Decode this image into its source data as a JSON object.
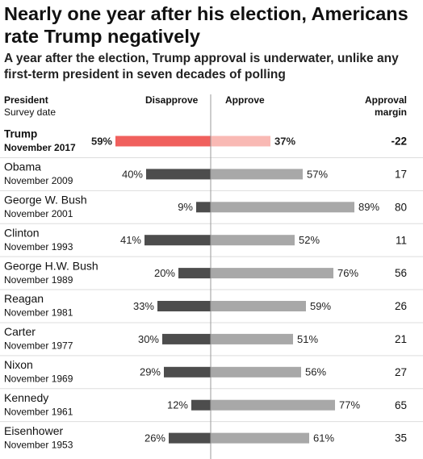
{
  "title": "Nearly one year after his election, Americans rate Trump negatively",
  "subtitle": "A year after the election, Trump approval is underwater, unlike any first-term president in seven decades of polling",
  "headers": {
    "president": "President",
    "survey_date": "Survey date",
    "disapprove": "Disapprove",
    "approve": "Approve",
    "margin_line1": "Approval",
    "margin_line2": "margin"
  },
  "colors": {
    "disapprove_highlight": "#f0605d",
    "approve_highlight": "#f9b9b4",
    "disapprove": "#4d4d4d",
    "approve": "#a8a8a8",
    "separator": "#dddddd",
    "axis": "#999999"
  },
  "chart_data": {
    "type": "bar",
    "layout": "diverging",
    "series": [
      {
        "name": "Disapprove",
        "values": [
          59,
          40,
          9,
          41,
          20,
          33,
          30,
          29,
          12,
          26
        ]
      },
      {
        "name": "Approve",
        "values": [
          37,
          57,
          89,
          52,
          76,
          59,
          51,
          56,
          77,
          61
        ]
      }
    ],
    "rows": [
      {
        "president": "Trump",
        "date": "November 2017",
        "disapprove": 59,
        "approve": 37,
        "disapprove_label": "59%",
        "approve_label": "37%",
        "margin": "-22",
        "highlight": true
      },
      {
        "president": "Obama",
        "date": "November 2009",
        "disapprove": 40,
        "approve": 57,
        "disapprove_label": "40%",
        "approve_label": "57%",
        "margin": "17",
        "highlight": false
      },
      {
        "president": "George W. Bush",
        "date": "November 2001",
        "disapprove": 9,
        "approve": 89,
        "disapprove_label": "9%",
        "approve_label": "89%",
        "margin": "80",
        "highlight": false
      },
      {
        "president": "Clinton",
        "date": "November 1993",
        "disapprove": 41,
        "approve": 52,
        "disapprove_label": "41%",
        "approve_label": "52%",
        "margin": "11",
        "highlight": false
      },
      {
        "president": "George H.W. Bush",
        "date": "November 1989",
        "disapprove": 20,
        "approve": 76,
        "disapprove_label": "20%",
        "approve_label": "76%",
        "margin": "56",
        "highlight": false
      },
      {
        "president": "Reagan",
        "date": "November 1981",
        "disapprove": 33,
        "approve": 59,
        "disapprove_label": "33%",
        "approve_label": "59%",
        "margin": "26",
        "highlight": false
      },
      {
        "president": "Carter",
        "date": "November 1977",
        "disapprove": 30,
        "approve": 51,
        "disapprove_label": "30%",
        "approve_label": "51%",
        "margin": "21",
        "highlight": false
      },
      {
        "president": "Nixon",
        "date": "November 1969",
        "disapprove": 29,
        "approve": 56,
        "disapprove_label": "29%",
        "approve_label": "56%",
        "margin": "27",
        "highlight": false
      },
      {
        "president": "Kennedy",
        "date": "November 1961",
        "disapprove": 12,
        "approve": 77,
        "disapprove_label": "12%",
        "approve_label": "77%",
        "margin": "65",
        "highlight": false
      },
      {
        "president": "Eisenhower",
        "date": "November 1953",
        "disapprove": 26,
        "approve": 61,
        "disapprove_label": "26%",
        "approve_label": "61%",
        "margin": "35",
        "highlight": false
      }
    ]
  }
}
